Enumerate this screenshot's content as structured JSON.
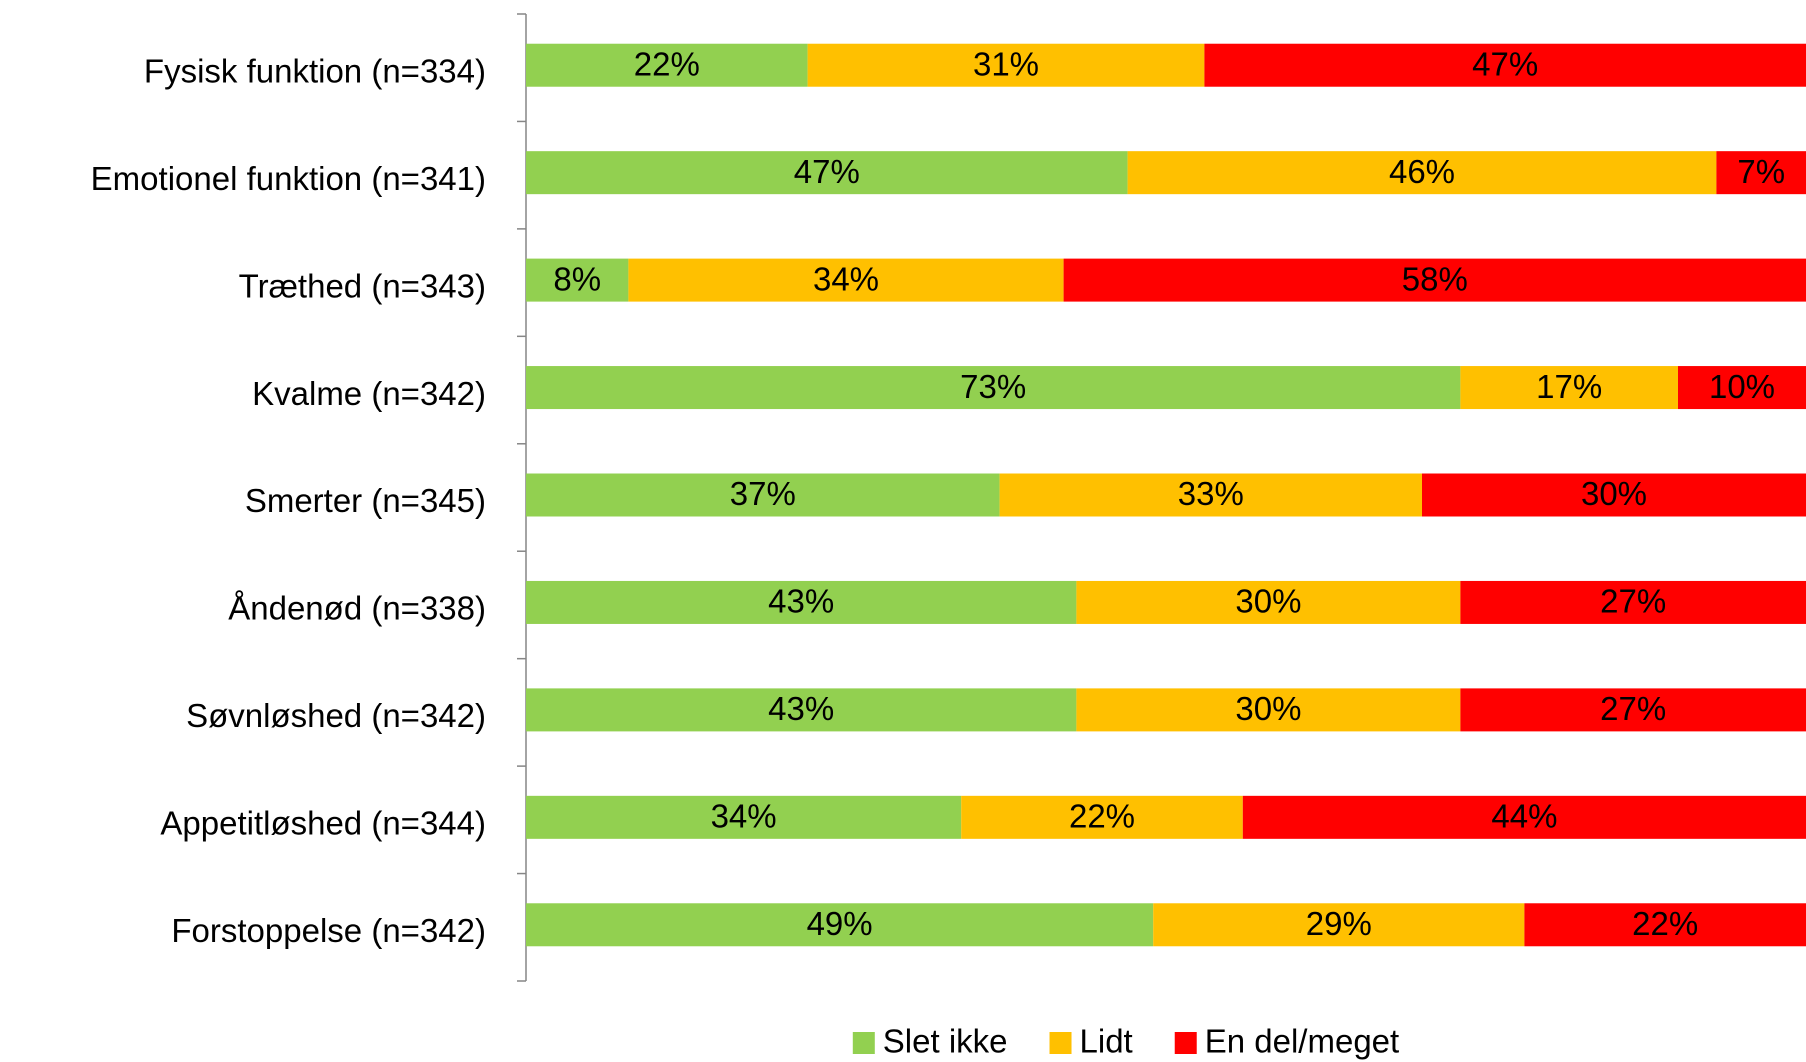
{
  "chart_data": {
    "type": "stacked-bar-horizontal",
    "categories": [
      "Fysisk funktion (n=334)",
      "Emotionel funktion (n=341)",
      "Træthed (n=343)",
      "Kvalme (n=342)",
      "Smerter (n=345)",
      "Åndenød (n=338)",
      "Søvnløshed (n=342)",
      "Appetitløshed (n=344)",
      "Forstoppelse (n=342)"
    ],
    "series": [
      {
        "name": "Slet ikke",
        "color": "#92d050",
        "values": [
          22,
          47,
          8,
          73,
          37,
          43,
          43,
          34,
          49
        ],
        "value_labels": [
          "22%",
          "47%",
          "8%",
          "73%",
          "37%",
          "43%",
          "43%",
          "34%",
          "49%"
        ]
      },
      {
        "name": "Lidt",
        "color": "#ffc000",
        "values": [
          31,
          46,
          34,
          17,
          33,
          30,
          30,
          22,
          29
        ],
        "value_labels": [
          "31%",
          "46%",
          "34%",
          "17%",
          "33%",
          "30%",
          "30%",
          "22%",
          "29%"
        ]
      },
      {
        "name": "En del/meget",
        "color": "#ff0000",
        "values": [
          47,
          7,
          58,
          10,
          30,
          27,
          27,
          44,
          22
        ],
        "value_labels": [
          "47%",
          "7%",
          "58%",
          "10%",
          "30%",
          "27%",
          "27%",
          "44%",
          "22%"
        ]
      }
    ],
    "xlim": [
      0,
      100
    ],
    "legend": "bottom"
  }
}
